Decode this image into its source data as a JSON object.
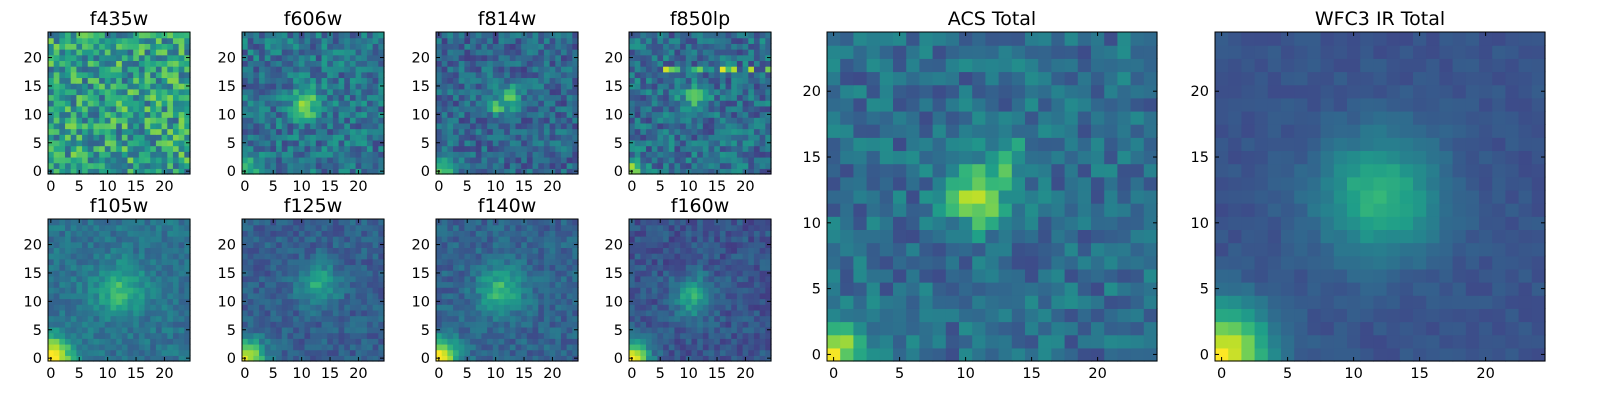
{
  "colormap": [
    "#440154",
    "#482878",
    "#3e4989",
    "#31688e",
    "#26828e",
    "#1f9e89",
    "#35b779",
    "#6ece58",
    "#b5de2b",
    "#fde725"
  ],
  "chart_data": [
    {
      "type": "heatmap",
      "title": "f435w",
      "grid_size": 25,
      "xlim": [
        0,
        24
      ],
      "ylim": [
        0,
        24
      ],
      "xticks": [
        "0",
        "5",
        "10",
        "15",
        "20"
      ],
      "yticks": [
        "0",
        "5",
        "10",
        "15",
        "20"
      ],
      "field": {
        "noise": 0.26,
        "base": 0.56,
        "peaks": [],
        "streak": 0
      }
    },
    {
      "type": "heatmap",
      "title": "f606w",
      "grid_size": 25,
      "xlim": [
        0,
        24
      ],
      "ylim": [
        0,
        24
      ],
      "xticks": [
        "0",
        "5",
        "10",
        "15",
        "20"
      ],
      "yticks": [
        "0",
        "5",
        "10",
        "15",
        "20"
      ],
      "field": {
        "noise": 0.17,
        "base": 0.38,
        "peaks": [
          {
            "x": 11,
            "y": 12,
            "amp": 0.45,
            "s": 1.8
          },
          {
            "x": 0,
            "y": 0,
            "amp": 0.35,
            "s": 2.2
          }
        ],
        "streak": 0
      }
    },
    {
      "type": "heatmap",
      "title": "f814w",
      "grid_size": 25,
      "xlim": [
        0,
        24
      ],
      "ylim": [
        0,
        24
      ],
      "xticks": [
        "0",
        "5",
        "10",
        "15",
        "20"
      ],
      "yticks": [
        "0",
        "5",
        "10",
        "15",
        "20"
      ],
      "field": {
        "noise": 0.15,
        "base": 0.33,
        "peaks": [
          {
            "x": 12,
            "y": 13,
            "amp": 0.35,
            "s": 1.7
          },
          {
            "x": 10,
            "y": 11,
            "amp": 0.45,
            "s": 0.6
          },
          {
            "x": 0,
            "y": 0,
            "amp": 0.45,
            "s": 1.8
          }
        ],
        "streak": 0
      }
    },
    {
      "type": "heatmap",
      "title": "f850lp",
      "grid_size": 25,
      "xlim": [
        0,
        24
      ],
      "ylim": [
        0,
        24
      ],
      "xticks": [
        "0",
        "5",
        "10",
        "15",
        "20"
      ],
      "yticks": [
        "0",
        "5",
        "10",
        "15",
        "20"
      ],
      "field": {
        "noise": 0.17,
        "base": 0.36,
        "peaks": [
          {
            "x": 11,
            "y": 13,
            "amp": 0.28,
            "s": 1.8
          },
          {
            "x": 0,
            "y": 0,
            "amp": 0.45,
            "s": 1.6
          }
        ],
        "streak": 18
      }
    },
    {
      "type": "heatmap",
      "title": "f105w",
      "grid_size": 25,
      "xlim": [
        0,
        24
      ],
      "ylim": [
        0,
        24
      ],
      "xticks": [
        "0",
        "5",
        "10",
        "15",
        "20"
      ],
      "yticks": [
        "0",
        "5",
        "10",
        "15",
        "20"
      ],
      "field": {
        "noise": 0.09,
        "base": 0.38,
        "peaks": [
          {
            "x": 12,
            "y": 12,
            "amp": 0.3,
            "s": 3
          },
          {
            "x": 0,
            "y": 0,
            "amp": 0.7,
            "s": 2.6
          }
        ],
        "streak": 0
      }
    },
    {
      "type": "heatmap",
      "title": "f125w",
      "grid_size": 25,
      "xlim": [
        0,
        24
      ],
      "ylim": [
        0,
        24
      ],
      "xticks": [
        "0",
        "5",
        "10",
        "15",
        "20"
      ],
      "yticks": [
        "0",
        "5",
        "10",
        "15",
        "20"
      ],
      "field": {
        "noise": 0.09,
        "base": 0.3,
        "peaks": [
          {
            "x": 13,
            "y": 13,
            "amp": 0.3,
            "s": 2.6
          },
          {
            "x": 0,
            "y": 0,
            "amp": 0.65,
            "s": 2.4
          }
        ],
        "streak": 0
      }
    },
    {
      "type": "heatmap",
      "title": "f140w",
      "grid_size": 25,
      "xlim": [
        0,
        24
      ],
      "ylim": [
        0,
        24
      ],
      "xticks": [
        "0",
        "5",
        "10",
        "15",
        "20"
      ],
      "yticks": [
        "0",
        "5",
        "10",
        "15",
        "20"
      ],
      "field": {
        "noise": 0.09,
        "base": 0.32,
        "peaks": [
          {
            "x": 11,
            "y": 12,
            "amp": 0.35,
            "s": 2.8
          },
          {
            "x": 0,
            "y": 0,
            "amp": 0.7,
            "s": 2.4
          }
        ],
        "streak": 0
      }
    },
    {
      "type": "heatmap",
      "title": "f160w",
      "grid_size": 25,
      "xlim": [
        0,
        24
      ],
      "ylim": [
        0,
        24
      ],
      "xticks": [
        "0",
        "5",
        "10",
        "15",
        "20"
      ],
      "yticks": [
        "0",
        "5",
        "10",
        "15",
        "20"
      ],
      "field": {
        "noise": 0.09,
        "base": 0.26,
        "peaks": [
          {
            "x": 11,
            "y": 11,
            "amp": 0.35,
            "s": 2.6
          },
          {
            "x": 0,
            "y": 0,
            "amp": 0.7,
            "s": 2.2
          }
        ],
        "streak": 0
      }
    },
    {
      "type": "heatmap",
      "title": "ACS Total",
      "grid_size": 25,
      "xlim": [
        0,
        24
      ],
      "ylim": [
        0,
        24
      ],
      "xticks": [
        "0",
        "5",
        "10",
        "15",
        "20"
      ],
      "yticks": [
        "0",
        "5",
        "10",
        "15",
        "20"
      ],
      "field": {
        "noise": 0.13,
        "base": 0.36,
        "peaks": [
          {
            "x": 11,
            "y": 12,
            "amp": 0.5,
            "s": 1.6
          },
          {
            "x": 13,
            "y": 15,
            "amp": 0.25,
            "s": 1.2
          },
          {
            "x": 0,
            "y": 0,
            "amp": 0.55,
            "s": 2
          }
        ],
        "streak": 0
      }
    },
    {
      "type": "heatmap",
      "title": "WFC3 IR Total",
      "grid_size": 25,
      "xlim": [
        0,
        24
      ],
      "ylim": [
        0,
        24
      ],
      "xticks": [
        "0",
        "5",
        "10",
        "15",
        "20"
      ],
      "yticks": [
        "0",
        "5",
        "10",
        "15",
        "20"
      ],
      "field": {
        "noise": 0.035,
        "base": 0.26,
        "peaks": [
          {
            "x": 12,
            "y": 12,
            "amp": 0.4,
            "s": 3.2
          },
          {
            "x": 0,
            "y": 0,
            "amp": 0.72,
            "s": 2.6
          }
        ],
        "streak": 0
      }
    }
  ]
}
